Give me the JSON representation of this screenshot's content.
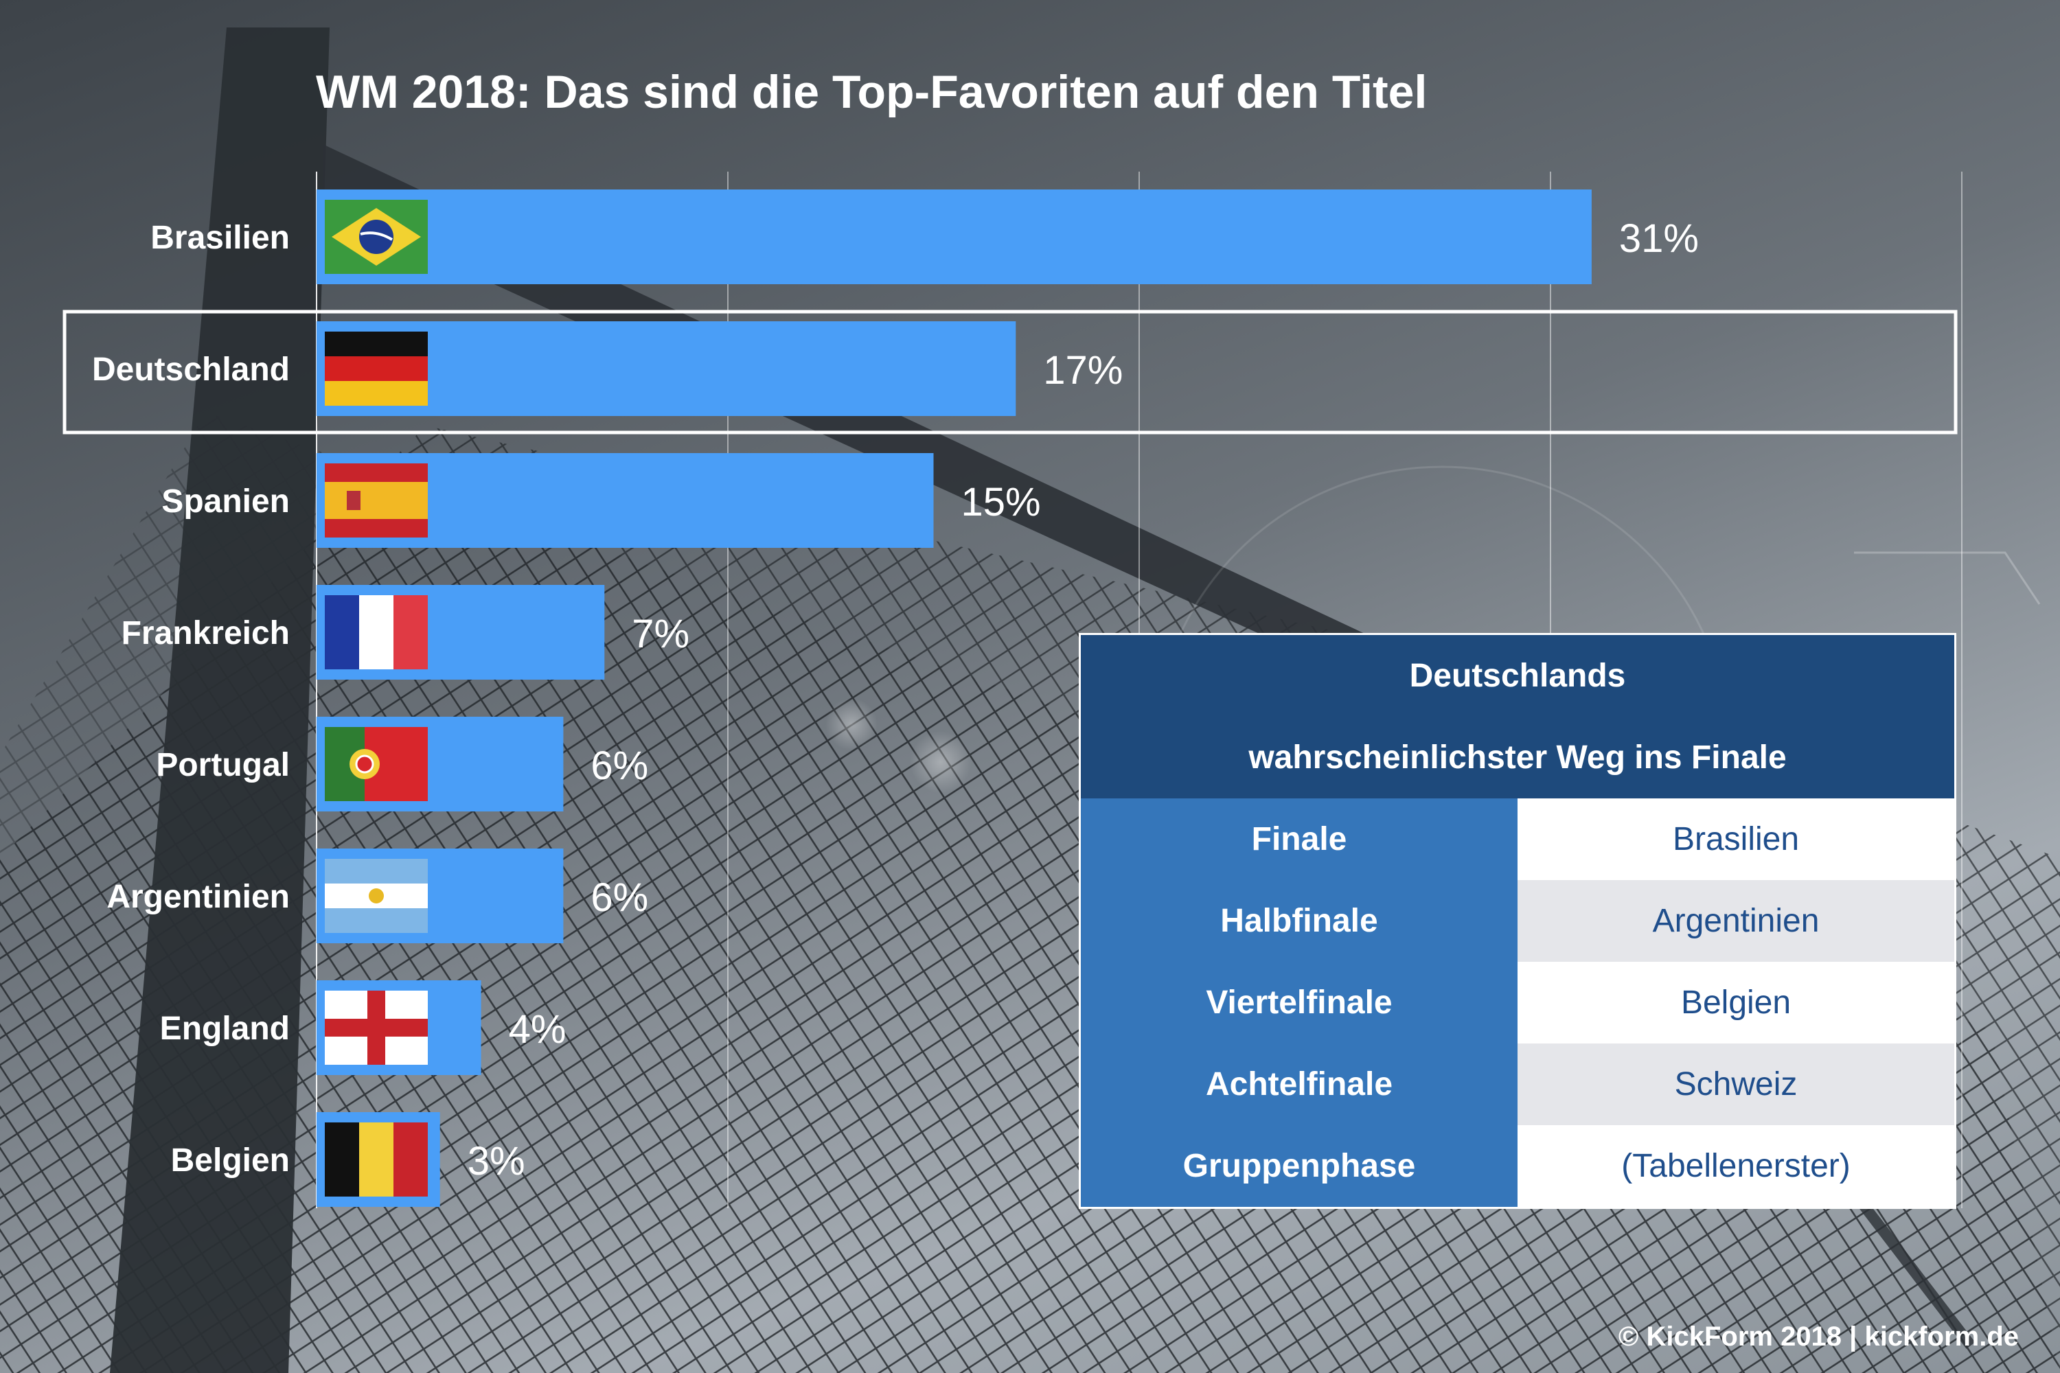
{
  "title": "WM 2018: Das sind die Top-Favoriten auf den Titel",
  "colors": {
    "bar": "#4a9ef7",
    "table_header": "#1e4a7c",
    "table_stage": "#3576ba",
    "table_text": "#1f4e8c"
  },
  "chart_data": {
    "type": "bar",
    "orientation": "horizontal",
    "title": "WM 2018: Das sind die Top-Favoriten auf den Titel",
    "categories": [
      "Brasilien",
      "Deutschland",
      "Spanien",
      "Frankreich",
      "Portugal",
      "Argentinien",
      "England",
      "Belgien"
    ],
    "values": [
      31,
      17,
      15,
      7,
      6,
      6,
      4,
      3
    ],
    "value_labels": [
      "31%",
      "17%",
      "15%",
      "7%",
      "6%",
      "6%",
      "4%",
      "3%"
    ],
    "unit": "%",
    "xlim": [
      0,
      40
    ],
    "grid": true,
    "highlighted": "Deutschland",
    "flags": [
      "brazil-flag-icon",
      "germany-flag-icon",
      "spain-flag-icon",
      "france-flag-icon",
      "portugal-flag-icon",
      "argentina-flag-icon",
      "england-flag-icon",
      "belgium-flag-icon"
    ]
  },
  "path_table": {
    "header_line1": "Deutschlands",
    "header_line2": "wahrscheinlichster Weg ins Finale",
    "rows": [
      {
        "stage": "Finale",
        "opponent": "Brasilien"
      },
      {
        "stage": "Halbfinale",
        "opponent": "Argentinien"
      },
      {
        "stage": "Viertelfinale",
        "opponent": "Belgien"
      },
      {
        "stage": "Achtelfinale",
        "opponent": "Schweiz"
      },
      {
        "stage": "Gruppenphase",
        "opponent": "(Tabellenerster)"
      }
    ]
  },
  "footer": "© KickForm 2018 | kickform.de"
}
